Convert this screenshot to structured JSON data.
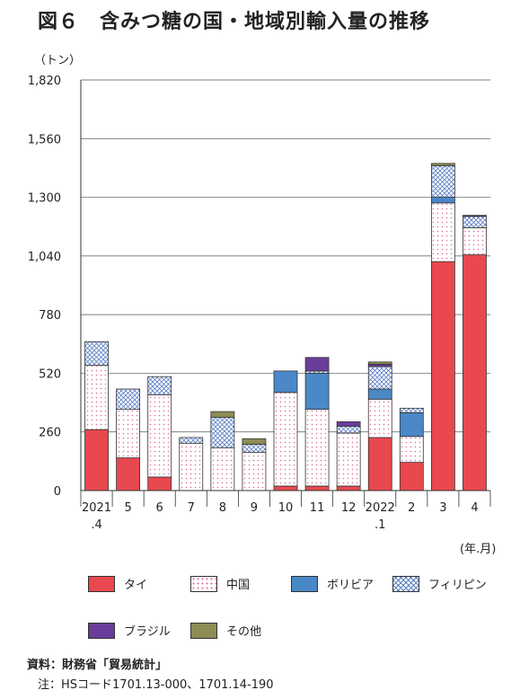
{
  "title": "図６　含みつ糖の国・地域別輸入量の推移",
  "unit_label": "（トン）",
  "x_unit_label": "(年.月)",
  "colors": {
    "thai": "#e8484e",
    "china": "#e06aa0",
    "bolivia": "#4a88c8",
    "philippines": "#5a7ec4",
    "brazil": "#6a3d9a",
    "other": "#8c8c54"
  },
  "legend": {
    "thai": "タイ",
    "china": "中国",
    "bolivia": "ボリビア",
    "philippines": "フィリピン",
    "brazil": "ブラジル",
    "other": "その他"
  },
  "source": "資料：財務省「貿易統計」",
  "note": "注：HSコード1701.13-000、1701.14-190",
  "chart_data": {
    "type": "bar",
    "stacked": true,
    "categories": [
      "2021.4",
      "5",
      "6",
      "7",
      "8",
      "9",
      "10",
      "11",
      "12",
      "2022.1",
      "2",
      "3",
      "4"
    ],
    "category_labels": [
      [
        "2021",
        ".4"
      ],
      [
        "5"
      ],
      [
        "6"
      ],
      [
        "7"
      ],
      [
        "8"
      ],
      [
        "9"
      ],
      [
        "10"
      ],
      [
        "11"
      ],
      [
        "12"
      ],
      [
        "2022",
        ".1"
      ],
      [
        "2"
      ],
      [
        "3"
      ],
      [
        "4"
      ]
    ],
    "ylim": [
      0,
      1820
    ],
    "yticks": [
      0,
      260,
      520,
      780,
      1040,
      1300,
      1560,
      1820
    ],
    "ytick_labels": [
      "0",
      "260",
      "520",
      "780",
      "1,040",
      "1,300",
      "1,560",
      "1,820"
    ],
    "grid": true,
    "legend_position": "bottom",
    "series": [
      {
        "name": "タイ",
        "key": "thai",
        "values": [
          270,
          145,
          60,
          0,
          0,
          0,
          20,
          20,
          20,
          235,
          125,
          1015,
          1045
        ]
      },
      {
        "name": "中国",
        "key": "china",
        "values": [
          285,
          215,
          365,
          210,
          190,
          170,
          415,
          340,
          235,
          170,
          115,
          260,
          120
        ]
      },
      {
        "name": "ボリビア",
        "key": "bolivia",
        "values": [
          0,
          0,
          0,
          0,
          0,
          0,
          95,
          160,
          0,
          45,
          105,
          25,
          0
        ]
      },
      {
        "name": "フィリピン",
        "key": "philippines",
        "values": [
          105,
          90,
          80,
          25,
          135,
          35,
          0,
          10,
          30,
          100,
          20,
          140,
          50
        ]
      },
      {
        "name": "ブラジル",
        "key": "brazil",
        "values": [
          0,
          0,
          0,
          0,
          0,
          0,
          0,
          60,
          20,
          10,
          0,
          0,
          5
        ]
      },
      {
        "name": "その他",
        "key": "other",
        "values": [
          0,
          0,
          0,
          0,
          25,
          25,
          0,
          0,
          0,
          10,
          0,
          10,
          0
        ]
      }
    ]
  }
}
